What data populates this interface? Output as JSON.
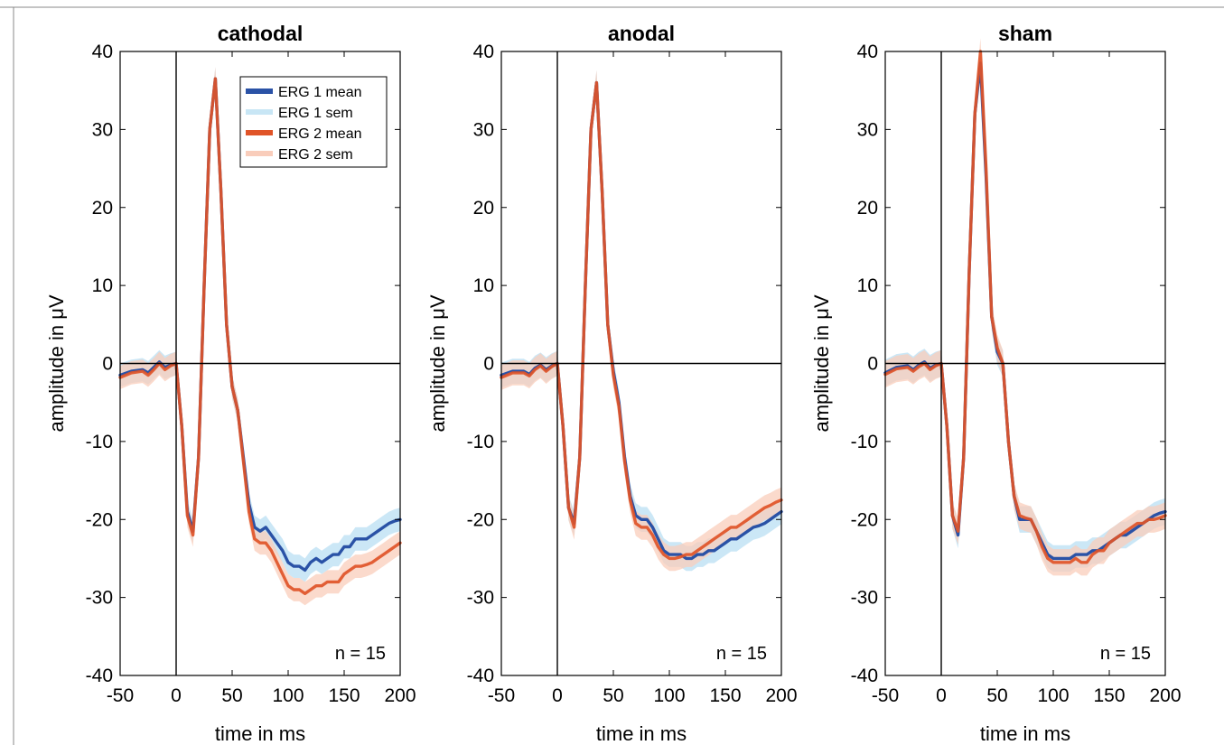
{
  "chart_data": [
    {
      "type": "line",
      "title": "cathodal",
      "xlabel": "time in ms",
      "ylabel": "amplitude in μV",
      "xlim": [
        -50,
        200
      ],
      "ylim": [
        -40,
        40
      ],
      "xticks": [
        -50,
        0,
        50,
        100,
        150,
        200
      ],
      "yticks": [
        -40,
        -30,
        -20,
        -10,
        0,
        10,
        20,
        30,
        40
      ],
      "xtick_labels": [
        "-50",
        "0",
        "50",
        "100",
        "150",
        "200"
      ],
      "ytick_labels": [
        "-40",
        "-30",
        "-20",
        "-10",
        "0",
        "10",
        "20",
        "30",
        "40"
      ],
      "annotation": "n = 15",
      "legend": {
        "position": "top-right",
        "entries": [
          "ERG 1 mean",
          "ERG 1 sem",
          "ERG 2 mean",
          "ERG 2 sem"
        ]
      },
      "series": [
        {
          "name": "ERG 1 mean",
          "color": "#2a52a6",
          "x": [
            -50,
            -40,
            -30,
            -25,
            -20,
            -15,
            -10,
            -5,
            0,
            5,
            10,
            15,
            20,
            25,
            30,
            35,
            40,
            45,
            50,
            55,
            60,
            65,
            70,
            75,
            80,
            85,
            90,
            95,
            100,
            105,
            110,
            115,
            120,
            125,
            130,
            135,
            140,
            145,
            150,
            155,
            160,
            165,
            170,
            175,
            180,
            185,
            190,
            195,
            200
          ],
          "y": [
            -1.5,
            -1.0,
            -0.8,
            -1.2,
            -0.5,
            0.2,
            -0.5,
            -0.2,
            0,
            -8,
            -19,
            -21.5,
            -12,
            10,
            30,
            36.5,
            22,
            5,
            -3,
            -6,
            -12,
            -18,
            -21,
            -21.5,
            -21,
            -22,
            -23,
            -24,
            -25.5,
            -26,
            -26,
            -26.5,
            -25.5,
            -25,
            -25.5,
            -25,
            -24.5,
            -24.5,
            -23.5,
            -23.5,
            -22.5,
            -22.5,
            -22.5,
            -22,
            -21.5,
            -21,
            -20.5,
            -20.2,
            -20
          ],
          "sem": 1.5
        },
        {
          "name": "ERG 2 mean",
          "color": "#e05428",
          "x": [
            -50,
            -40,
            -30,
            -25,
            -20,
            -15,
            -10,
            -5,
            0,
            5,
            10,
            15,
            20,
            25,
            30,
            35,
            40,
            45,
            50,
            55,
            60,
            65,
            70,
            75,
            80,
            85,
            90,
            95,
            100,
            105,
            110,
            115,
            120,
            125,
            130,
            135,
            140,
            145,
            150,
            155,
            160,
            165,
            170,
            175,
            180,
            185,
            190,
            195,
            200
          ],
          "y": [
            -1.8,
            -1.2,
            -1.0,
            -1.5,
            -0.8,
            0,
            -0.8,
            -0.3,
            0,
            -8,
            -19.5,
            -22,
            -12,
            10,
            30,
            36.5,
            22,
            5,
            -3,
            -6,
            -12.5,
            -19,
            -22.5,
            -23,
            -23,
            -24,
            -25.5,
            -27,
            -28.5,
            -29,
            -29,
            -29.5,
            -29,
            -28.5,
            -28.5,
            -28,
            -28,
            -28,
            -27,
            -26.5,
            -26,
            -26,
            -25.8,
            -25.5,
            -25,
            -24.5,
            -24,
            -23.5,
            -23
          ],
          "sem": 1.5
        }
      ]
    },
    {
      "type": "line",
      "title": "anodal",
      "xlabel": "time in ms",
      "ylabel": "amplitude in μV",
      "xlim": [
        -50,
        200
      ],
      "ylim": [
        -40,
        40
      ],
      "xticks": [
        -50,
        0,
        50,
        100,
        150,
        200
      ],
      "yticks": [
        -40,
        -30,
        -20,
        -10,
        0,
        10,
        20,
        30,
        40
      ],
      "xtick_labels": [
        "-50",
        "0",
        "50",
        "100",
        "150",
        "200"
      ],
      "ytick_labels": [
        "-40",
        "-30",
        "-20",
        "-10",
        "0",
        "10",
        "20",
        "30",
        "40"
      ],
      "annotation": "n = 15",
      "series": [
        {
          "name": "ERG 1 mean",
          "color": "#2a52a6",
          "x": [
            -50,
            -40,
            -30,
            -25,
            -20,
            -15,
            -10,
            -5,
            0,
            5,
            10,
            15,
            20,
            25,
            30,
            35,
            40,
            45,
            50,
            55,
            60,
            65,
            70,
            75,
            80,
            85,
            90,
            95,
            100,
            105,
            110,
            115,
            120,
            125,
            130,
            135,
            140,
            145,
            150,
            155,
            160,
            165,
            170,
            175,
            180,
            185,
            190,
            195,
            200
          ],
          "y": [
            -1.5,
            -1.0,
            -1.0,
            -1.4,
            -0.6,
            -0.2,
            -0.8,
            -0.3,
            0,
            -8,
            -18.5,
            -20.5,
            -12,
            10,
            30,
            36,
            22,
            5,
            -1,
            -5,
            -12,
            -17,
            -19.5,
            -20,
            -20,
            -21,
            -22.5,
            -24,
            -24.5,
            -24.5,
            -24.5,
            -25,
            -25,
            -24.5,
            -24.5,
            -24,
            -24,
            -23.5,
            -23,
            -22.5,
            -22.5,
            -22,
            -21.5,
            -21,
            -20.8,
            -20.5,
            -20,
            -19.5,
            -19
          ],
          "sem": 1.6
        },
        {
          "name": "ERG 2 mean",
          "color": "#e05428",
          "x": [
            -50,
            -40,
            -30,
            -25,
            -20,
            -15,
            -10,
            -5,
            0,
            5,
            10,
            15,
            20,
            25,
            30,
            35,
            40,
            45,
            50,
            55,
            60,
            65,
            70,
            75,
            80,
            85,
            90,
            95,
            100,
            105,
            110,
            115,
            120,
            125,
            130,
            135,
            140,
            145,
            150,
            155,
            160,
            165,
            170,
            175,
            180,
            185,
            190,
            195,
            200
          ],
          "y": [
            -1.8,
            -1.2,
            -1.2,
            -1.6,
            -0.8,
            -0.3,
            -1.0,
            -0.4,
            0,
            -8,
            -18.5,
            -21,
            -12,
            10,
            30,
            36,
            22,
            5,
            -1.5,
            -5.5,
            -12.5,
            -17.5,
            -20.5,
            -21,
            -21,
            -22,
            -23.5,
            -24.5,
            -25,
            -25,
            -24.8,
            -24.5,
            -24.5,
            -24,
            -23.5,
            -23,
            -22.5,
            -22,
            -21.5,
            -21,
            -21,
            -20.5,
            -20,
            -19.5,
            -19,
            -18.5,
            -18.2,
            -17.8,
            -17.5
          ],
          "sem": 1.6
        }
      ]
    },
    {
      "type": "line",
      "title": "sham",
      "xlabel": "time in ms",
      "ylabel": "amplitude in μV",
      "xlim": [
        -50,
        200
      ],
      "ylim": [
        -40,
        40
      ],
      "xticks": [
        -50,
        0,
        50,
        100,
        150,
        200
      ],
      "yticks": [
        -40,
        -30,
        -20,
        -10,
        0,
        10,
        20,
        30,
        40
      ],
      "xtick_labels": [
        "-50",
        "0",
        "50",
        "100",
        "150",
        "200"
      ],
      "ytick_labels": [
        "-40",
        "-30",
        "-20",
        "-10",
        "0",
        "10",
        "20",
        "30",
        "40"
      ],
      "annotation": "n = 15",
      "series": [
        {
          "name": "ERG 1 mean",
          "color": "#2a52a6",
          "x": [
            -50,
            -40,
            -30,
            -25,
            -20,
            -15,
            -10,
            -5,
            0,
            5,
            10,
            15,
            20,
            25,
            30,
            35,
            40,
            45,
            50,
            55,
            60,
            65,
            70,
            75,
            80,
            85,
            90,
            95,
            100,
            105,
            110,
            115,
            120,
            125,
            130,
            135,
            140,
            145,
            150,
            155,
            160,
            165,
            170,
            175,
            180,
            185,
            190,
            195,
            200
          ],
          "y": [
            -1.2,
            -0.5,
            -0.3,
            -0.8,
            -0.2,
            0.2,
            -0.6,
            -0.2,
            0,
            -8,
            -19.5,
            -22,
            -12,
            12,
            32,
            38.5,
            24,
            6,
            1.5,
            0,
            -10,
            -17,
            -20,
            -20,
            -20,
            -21.5,
            -23,
            -24.5,
            -25,
            -25,
            -25,
            -25,
            -24.5,
            -24.5,
            -24.5,
            -24,
            -24,
            -23.5,
            -23,
            -22.5,
            -22,
            -22,
            -21.5,
            -21,
            -20.5,
            -20,
            -19.5,
            -19.2,
            -19
          ],
          "sem": 1.7
        },
        {
          "name": "ERG 2 mean",
          "color": "#e05428",
          "x": [
            -50,
            -40,
            -30,
            -25,
            -20,
            -15,
            -10,
            -5,
            0,
            5,
            10,
            15,
            20,
            25,
            30,
            35,
            40,
            45,
            50,
            55,
            60,
            65,
            70,
            75,
            80,
            85,
            90,
            95,
            100,
            105,
            110,
            115,
            120,
            125,
            130,
            135,
            140,
            145,
            150,
            155,
            160,
            165,
            170,
            175,
            180,
            185,
            190,
            195,
            200
          ],
          "y": [
            -1.4,
            -0.7,
            -0.5,
            -1.0,
            -0.4,
            0,
            -0.8,
            -0.3,
            0,
            -8,
            -19.5,
            -21.5,
            -12,
            12,
            32,
            40,
            25,
            6,
            2,
            0,
            -10,
            -17,
            -19.5,
            -19.8,
            -20,
            -21.5,
            -23.5,
            -25,
            -25.5,
            -25.5,
            -25.5,
            -25.5,
            -25,
            -25.5,
            -25.5,
            -24.5,
            -24,
            -24,
            -23,
            -22.5,
            -22,
            -21.5,
            -21,
            -20.5,
            -20.5,
            -20,
            -20,
            -19.8,
            -19.5
          ],
          "sem": 1.7
        }
      ]
    }
  ],
  "colors": {
    "erg1_mean": "#2a52a6",
    "erg1_sem": "#c8e6f5",
    "erg2_mean": "#e05428",
    "erg2_sem": "#f9cdbb"
  }
}
